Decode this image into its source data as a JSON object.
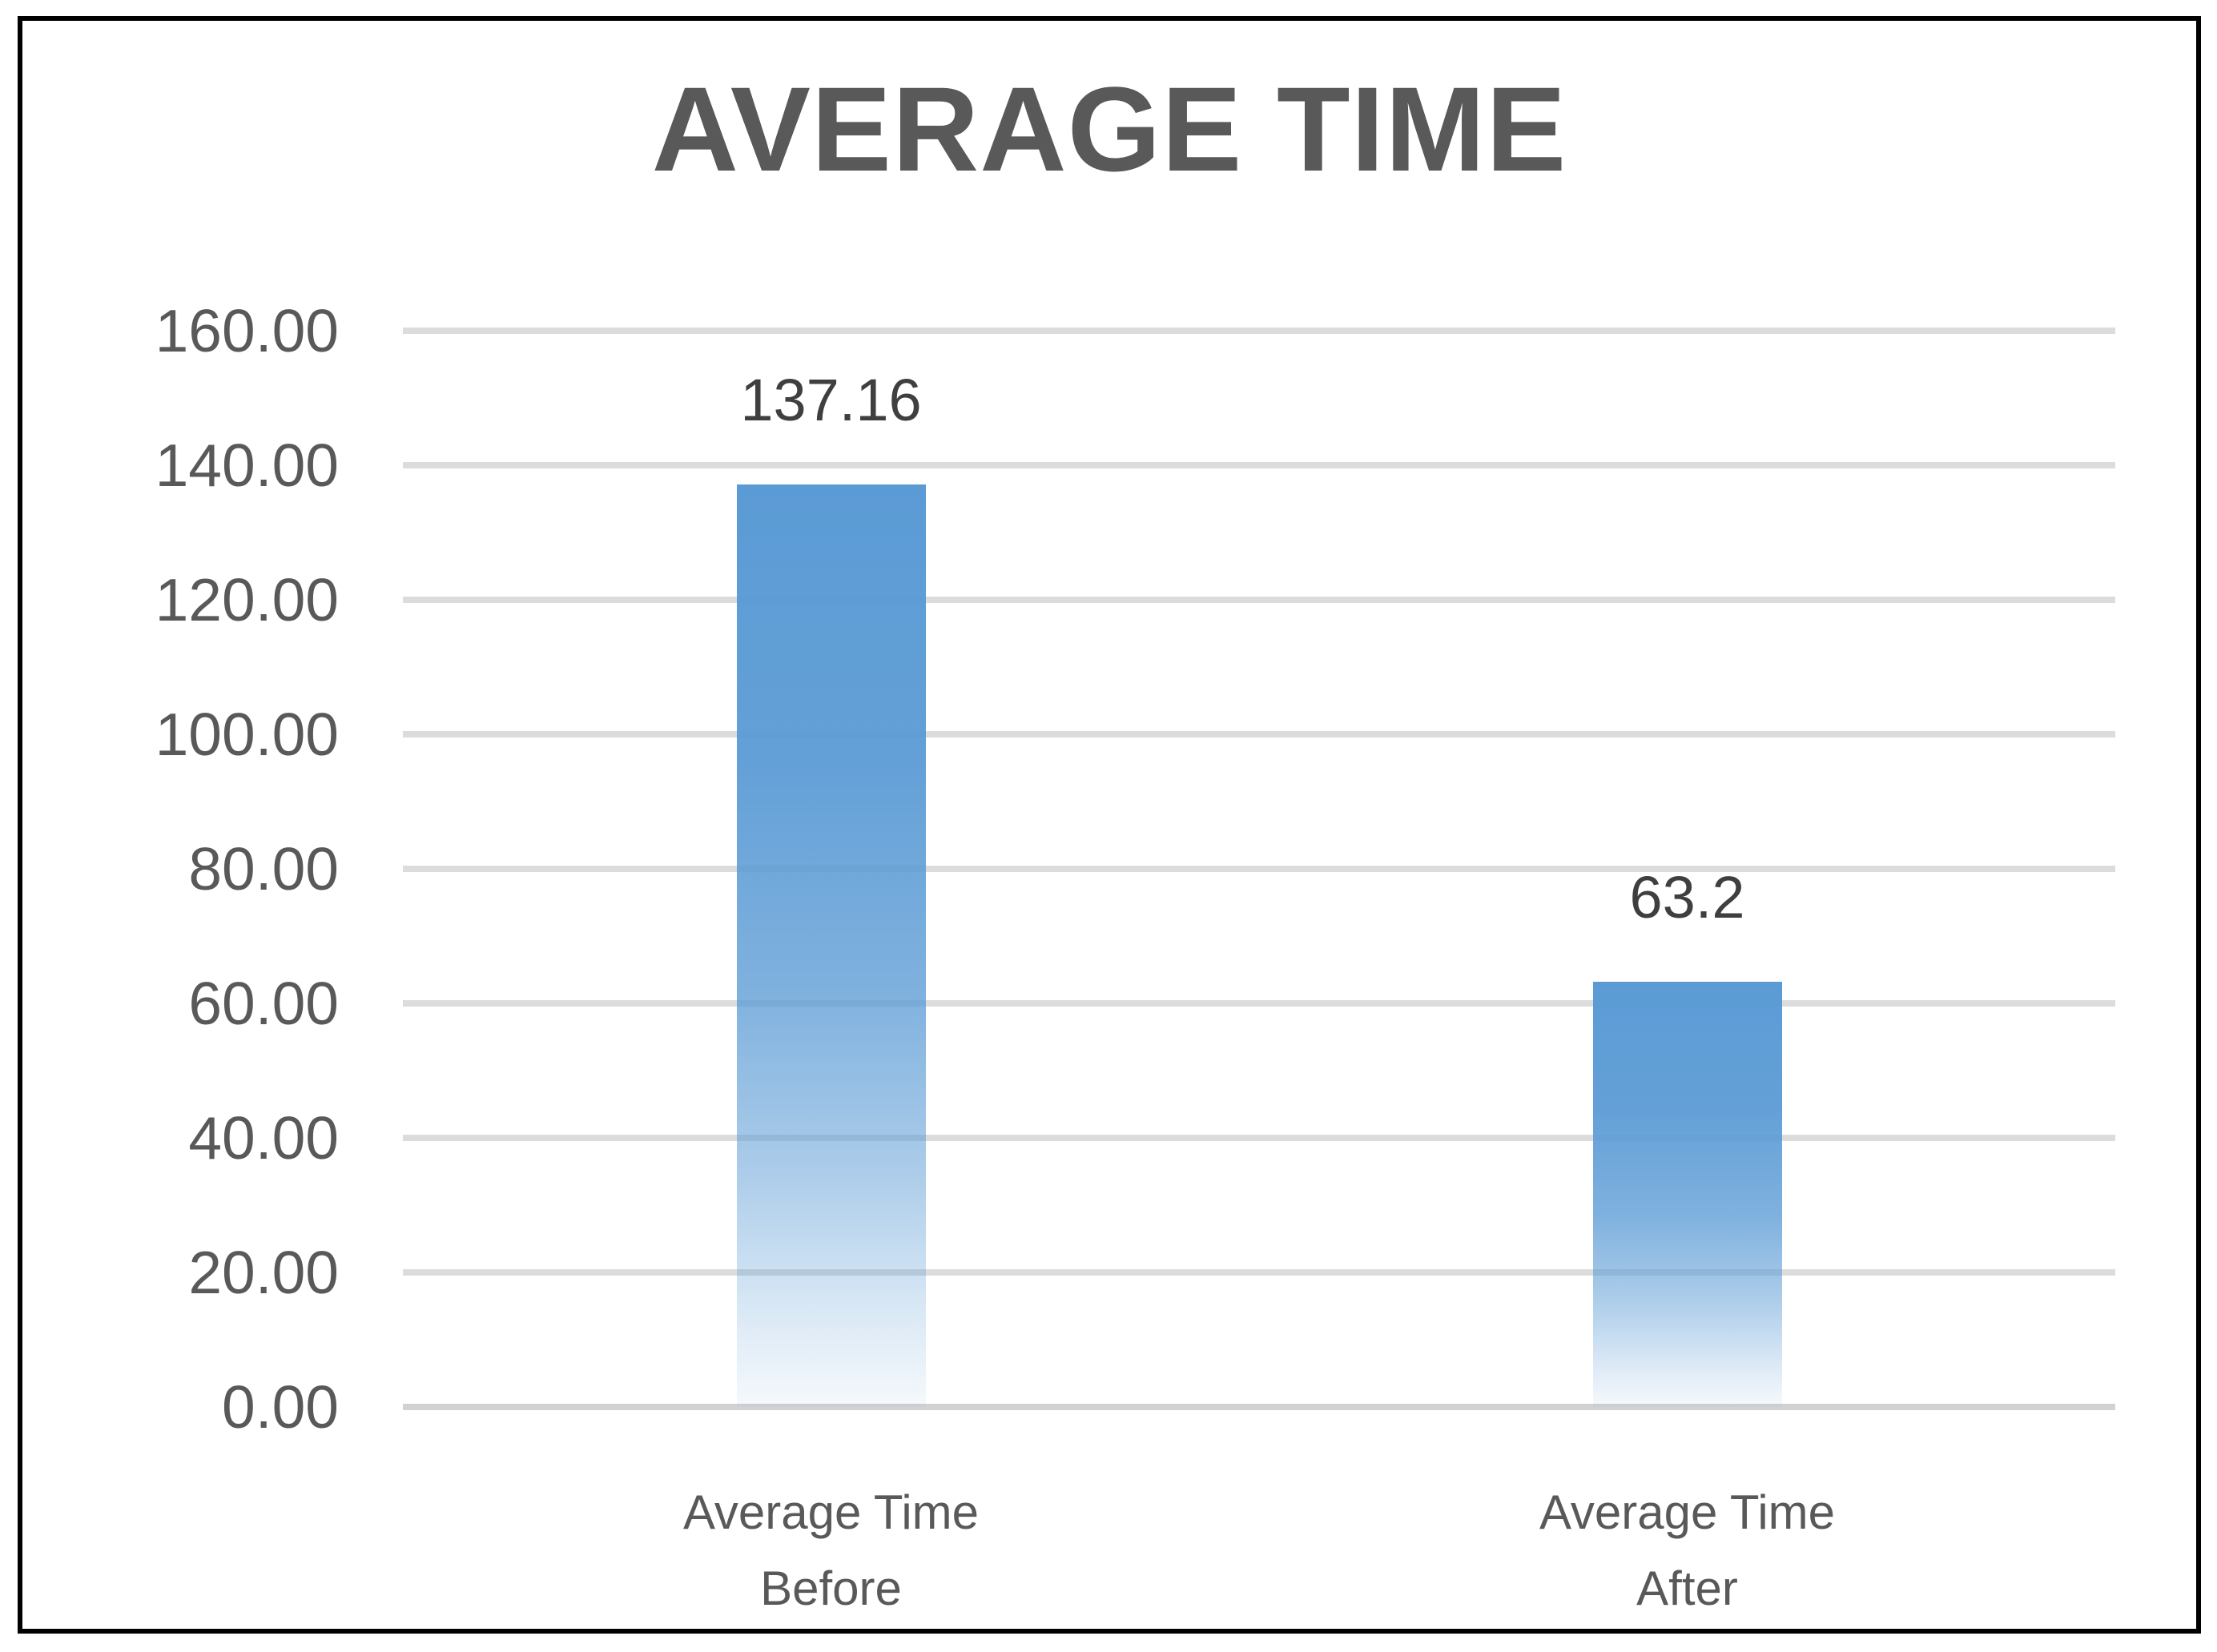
{
  "chart_data": {
    "type": "bar",
    "title": "AVERAGE TIME",
    "categories": [
      "Average Time Before",
      "Average Time After"
    ],
    "category_lines": [
      [
        "Average Time",
        "Before"
      ],
      [
        "Average Time",
        "After"
      ]
    ],
    "values": [
      137.16,
      63.2
    ],
    "value_labels": [
      "137.16",
      "63.2"
    ],
    "xlabel": "",
    "ylabel": "",
    "ylim": [
      0,
      160
    ],
    "ytick_step": 20,
    "ytick_labels": [
      "0.00",
      "20.00",
      "40.00",
      "60.00",
      "80.00",
      "100.00",
      "120.00",
      "140.00",
      "160.00"
    ],
    "grid": true,
    "legend_position": "none",
    "colors": {
      "bar_top": "#5b9bd5",
      "bar_bottom_tint": "#f3f8fd",
      "gridline": "#dcdcdc",
      "axis_line": "#d2d2d2",
      "title_text": "#595959",
      "tick_text": "#595959",
      "value_label_text": "#3f3f3f",
      "frame_border": "#000000",
      "background": "#ffffff"
    }
  }
}
